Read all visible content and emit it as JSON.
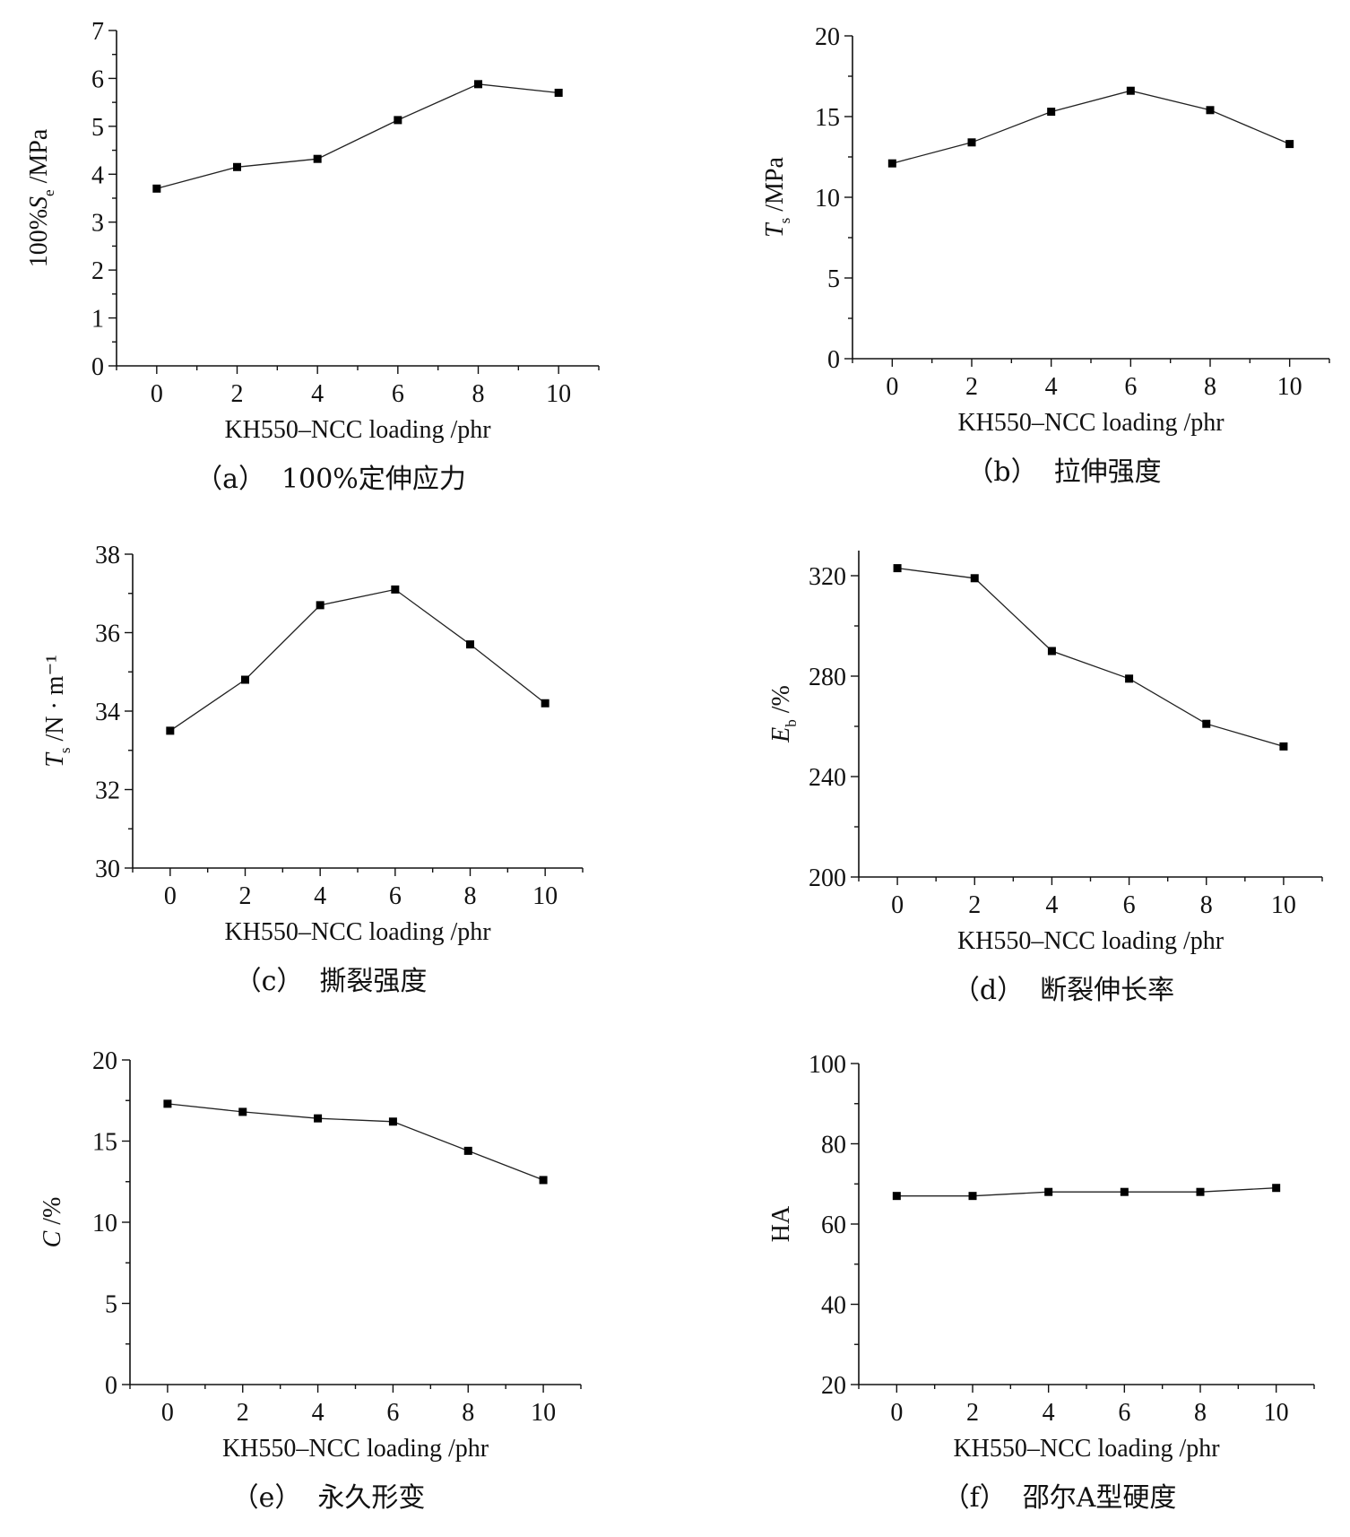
{
  "chart_data": [
    {
      "type": "line",
      "panel_label": "（a）",
      "caption": "100%定伸应力",
      "xlabel": "KH550–NCC loading /phr",
      "ylabel": {
        "pre": "100%",
        "var": "S",
        "sub": "e",
        "post": " /MPa"
      },
      "x": [
        0,
        2,
        4,
        6,
        8,
        10
      ],
      "values": [
        3.7,
        4.15,
        4.32,
        5.13,
        5.88,
        5.7
      ],
      "xlim": [
        -1,
        11
      ],
      "xticks": [
        0,
        2,
        4,
        6,
        8,
        10
      ],
      "ylim": [
        0,
        7
      ],
      "yticks": [
        0,
        1,
        2,
        3,
        4,
        5,
        6,
        7
      ]
    },
    {
      "type": "line",
      "panel_label": "（b）",
      "caption": "拉伸强度",
      "xlabel": "KH550–NCC loading /phr",
      "ylabel": {
        "pre": "",
        "var": "T",
        "sub": "s",
        "post": " /MPa"
      },
      "x": [
        0,
        2,
        4,
        6,
        8,
        10
      ],
      "values": [
        12.1,
        13.4,
        15.3,
        16.6,
        15.4,
        13.3
      ],
      "xlim": [
        -1,
        11
      ],
      "xticks": [
        0,
        2,
        4,
        6,
        8,
        10
      ],
      "ylim": [
        0,
        20
      ],
      "yticks": [
        0,
        5,
        10,
        15,
        20
      ]
    },
    {
      "type": "line",
      "panel_label": "（c）",
      "caption": "撕裂强度",
      "xlabel": "KH550–NCC loading /phr",
      "ylabel": {
        "pre": "",
        "var": "T",
        "sub": "s",
        "post": " /N · m⁻¹"
      },
      "x": [
        0,
        2,
        4,
        6,
        8,
        10
      ],
      "values": [
        33.5,
        34.8,
        36.7,
        37.1,
        35.7,
        34.2
      ],
      "xlim": [
        -1,
        11
      ],
      "xticks": [
        0,
        2,
        4,
        6,
        8,
        10
      ],
      "ylim": [
        30,
        38
      ],
      "yticks": [
        30,
        32,
        34,
        36,
        38
      ]
    },
    {
      "type": "line",
      "panel_label": "（d）",
      "caption": "断裂伸长率",
      "xlabel": "KH550–NCC loading /phr",
      "ylabel": {
        "pre": "",
        "var": "E",
        "sub": "b",
        "post": " /%"
      },
      "x": [
        0,
        2,
        4,
        6,
        8,
        10
      ],
      "values": [
        323,
        319,
        290,
        279,
        261,
        252
      ],
      "xlim": [
        -1,
        11
      ],
      "xticks": [
        0,
        2,
        4,
        6,
        8,
        10
      ],
      "ylim": [
        200,
        330
      ],
      "yticks": [
        200,
        240,
        280,
        320
      ]
    },
    {
      "type": "line",
      "panel_label": "（e）",
      "caption": "永久形变",
      "xlabel": "KH550–NCC loading /phr",
      "ylabel": {
        "pre": "",
        "var": "C",
        "sub": "",
        "post": " /%"
      },
      "x": [
        0,
        2,
        4,
        6,
        8,
        10
      ],
      "values": [
        17.3,
        16.8,
        16.4,
        16.2,
        14.4,
        12.6
      ],
      "xlim": [
        -1,
        11
      ],
      "xticks": [
        0,
        2,
        4,
        6,
        8,
        10
      ],
      "ylim": [
        0,
        20
      ],
      "yticks": [
        0,
        5,
        10,
        15,
        20
      ]
    },
    {
      "type": "line",
      "panel_label": "（f）",
      "caption": "邵尔A型硬度",
      "xlabel": "KH550–NCC loading /phr",
      "ylabel": {
        "pre": "HA",
        "var": "",
        "sub": "",
        "post": ""
      },
      "x": [
        0,
        2,
        4,
        6,
        8,
        10
      ],
      "values": [
        67,
        67,
        68,
        68,
        68,
        69
      ],
      "xlim": [
        -1,
        11
      ],
      "xticks": [
        0,
        2,
        4,
        6,
        8,
        10
      ],
      "ylim": [
        20,
        100
      ],
      "yticks": [
        20,
        40,
        60,
        80,
        100
      ]
    }
  ]
}
